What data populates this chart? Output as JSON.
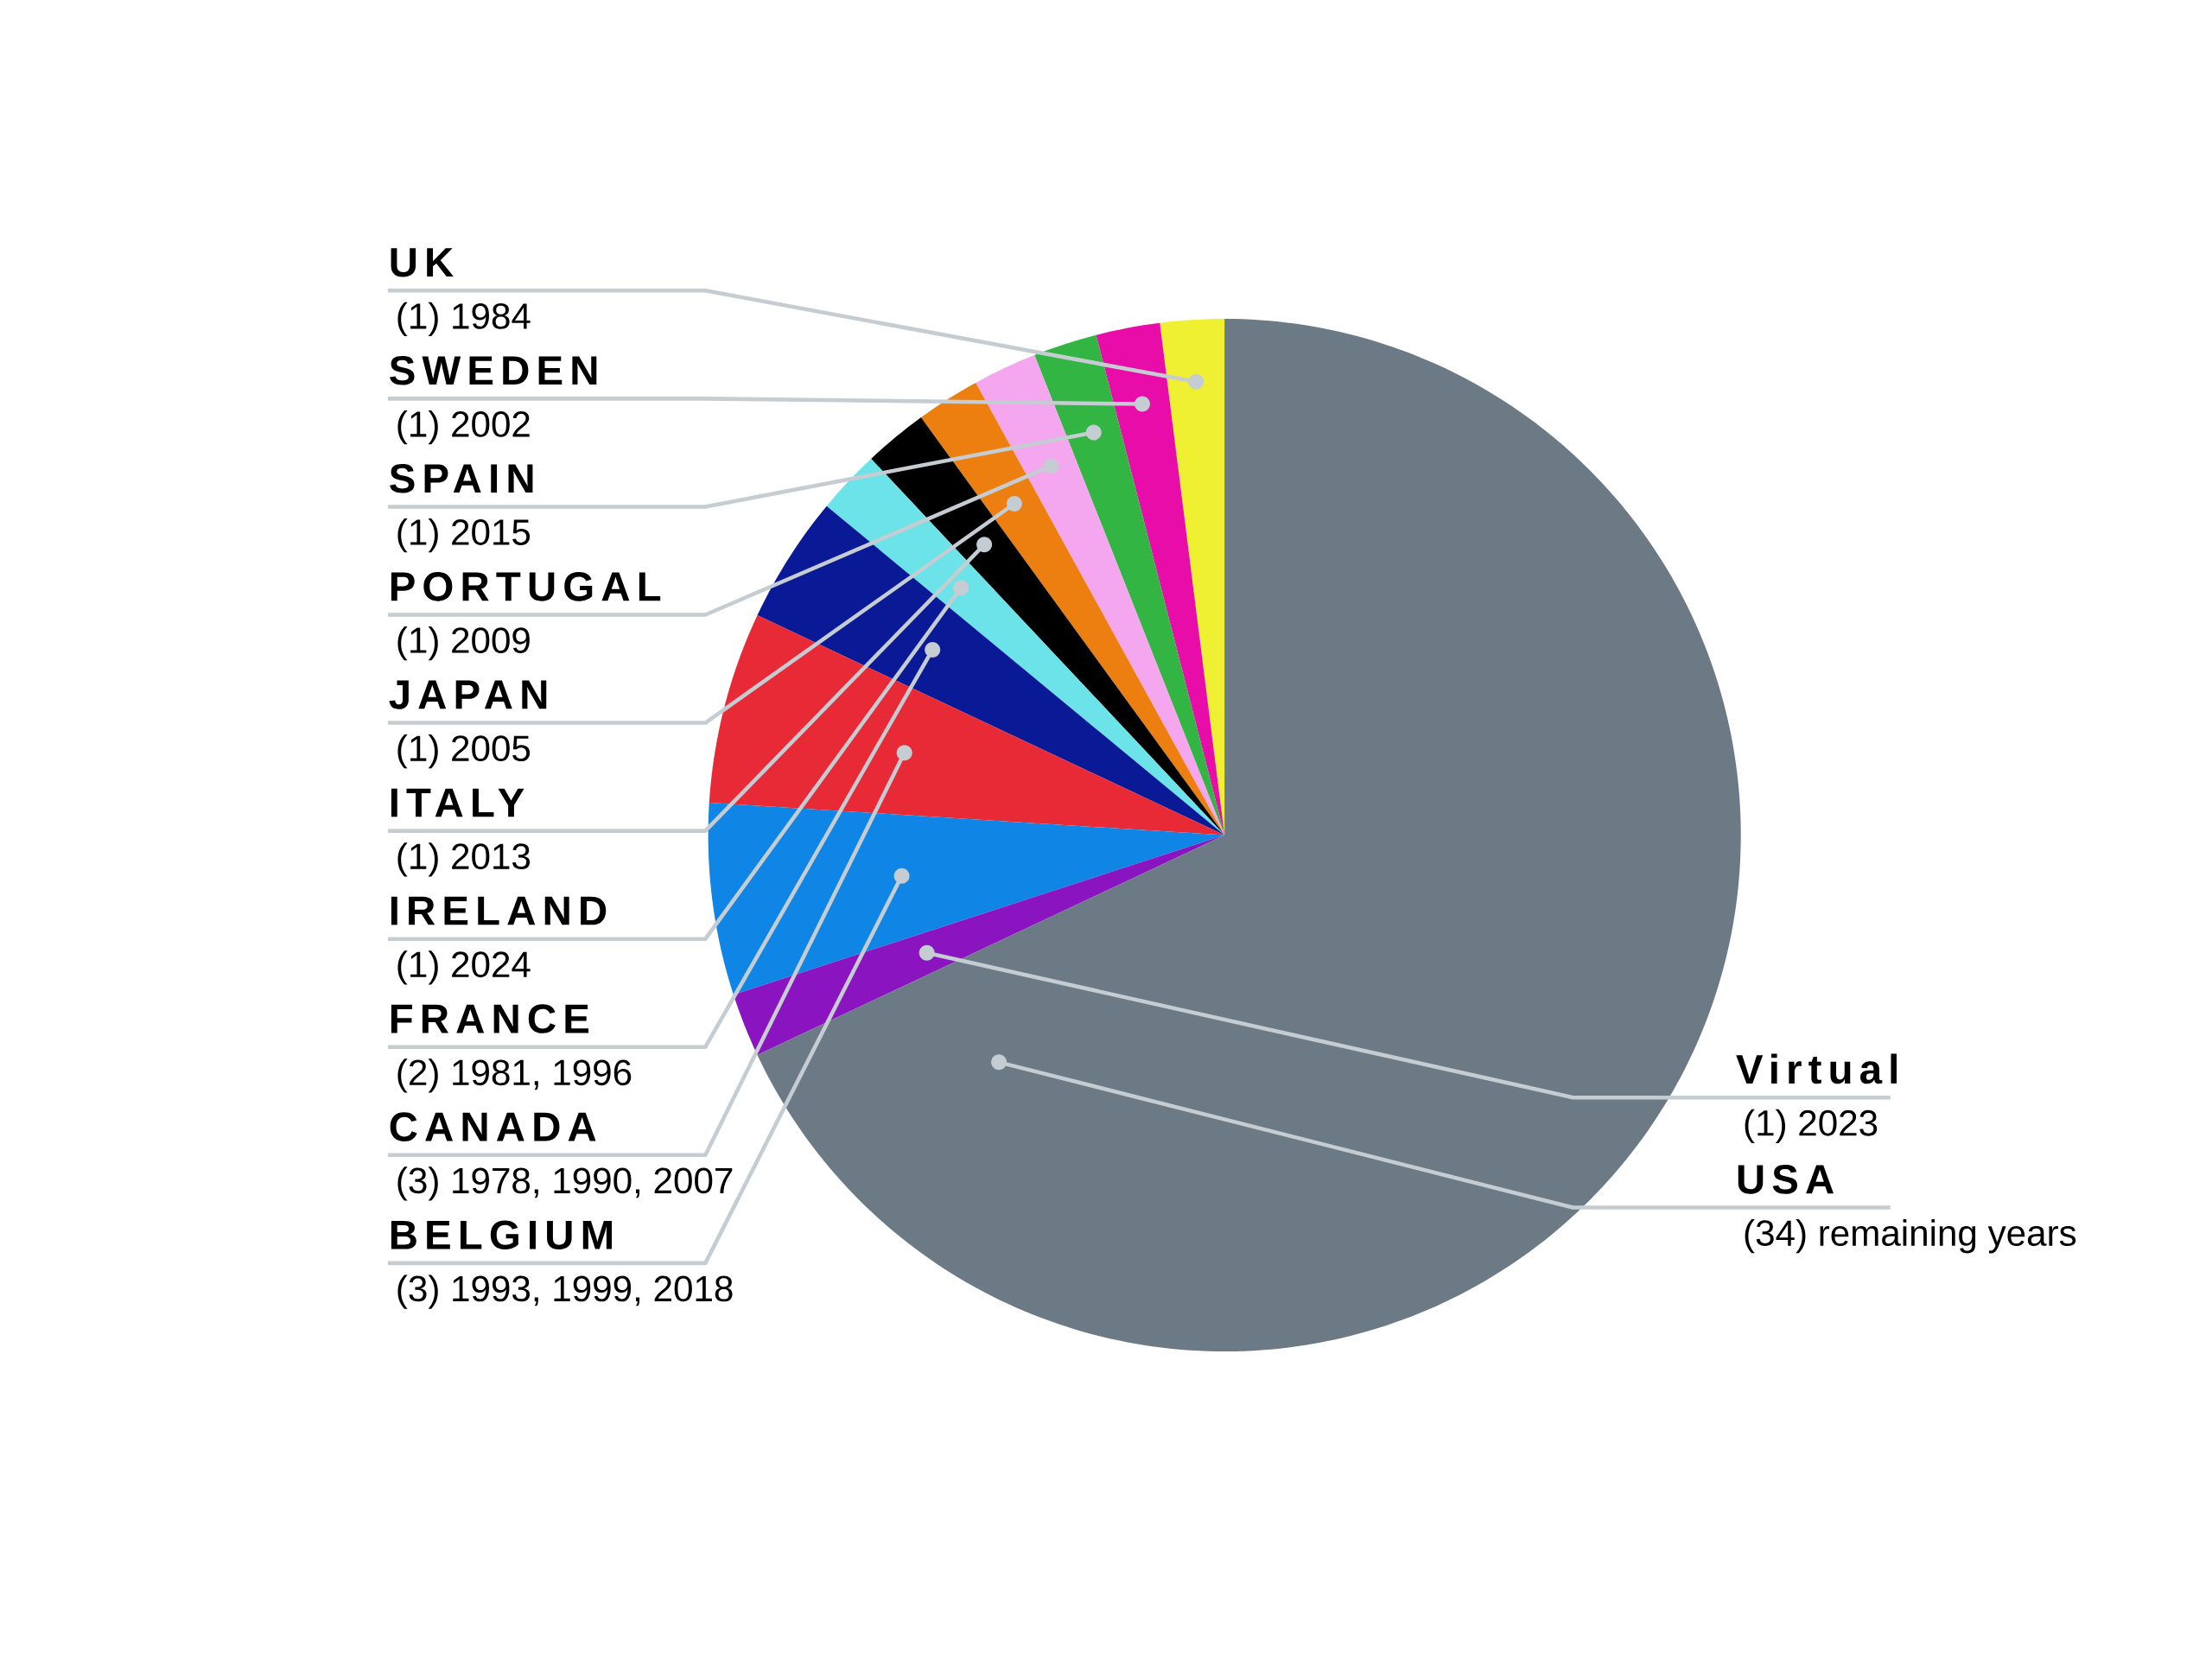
{
  "chart_data": {
    "type": "pie",
    "categories": [
      "UK",
      "SWEDEN",
      "SPAIN",
      "PORTUGAL",
      "JAPAN",
      "ITALY",
      "IRELAND",
      "FRANCE",
      "CANADA",
      "BELGIUM",
      "Virtual",
      "USA"
    ],
    "values": [
      1,
      1,
      1,
      1,
      1,
      1,
      1,
      2,
      3,
      3,
      1,
      34
    ],
    "value_labels": [
      "(1) 1984",
      "(1) 2002",
      "(1) 2015",
      "(1) 2009",
      "(1) 2005",
      "(1) 2013",
      "(1) 2024",
      "(2) 1981, 1996",
      "(3) 1978, 1990, 2007",
      "(3) 1993, 1999, 2018",
      "(1) 2023",
      "(34) remaining years"
    ],
    "colors": [
      "#f0f032",
      "#e80ca8",
      "#33b544",
      "#f4a6ee",
      "#ec7f0f",
      "#000000",
      "#6be3e8",
      "#0a1a96",
      "#e82a36",
      "#0f86e6",
      "#8a14c0",
      "#6c7a86"
    ]
  }
}
